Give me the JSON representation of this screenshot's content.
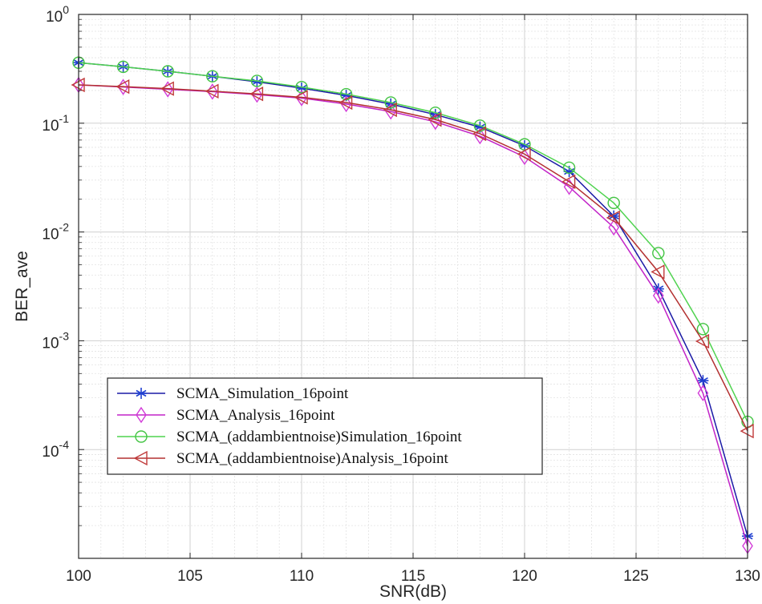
{
  "chart_data": {
    "type": "line",
    "title": "",
    "xlabel": "SNR(dB)",
    "ylabel": "BER_ave",
    "yscale": "log",
    "xlim": [
      100,
      130
    ],
    "ylim": [
      1e-05,
      1
    ],
    "grid": true,
    "minor_grid": true,
    "legend_position": "lower-left",
    "x_ticks": [
      100,
      105,
      110,
      115,
      120,
      125,
      130
    ],
    "x_tick_labels": [
      "100",
      "105",
      "110",
      "115",
      "120",
      "125",
      "130"
    ],
    "y_ticks": [
      1,
      0.1,
      0.01,
      0.001,
      0.0001
    ],
    "y_tick_labels": [
      {
        "base": "10",
        "exp": "0"
      },
      {
        "base": "10",
        "exp": "-1"
      },
      {
        "base": "10",
        "exp": "-2"
      },
      {
        "base": "10",
        "exp": "-3"
      },
      {
        "base": "10",
        "exp": "-4"
      }
    ],
    "series": [
      {
        "name": "SCMA_Simulation_16point",
        "legend_label": "SCMA_Simulation_16point",
        "color": "#1a1aa6",
        "marker_color": "#1f3fd0",
        "marker": "asterisk",
        "x": [
          100,
          102,
          104,
          106,
          108,
          110,
          112,
          114,
          116,
          118,
          120,
          122,
          124,
          126,
          128,
          130
        ],
        "y": [
          0.36,
          0.33,
          0.3,
          0.27,
          0.24,
          0.21,
          0.18,
          0.15,
          0.12,
          0.092,
          0.062,
          0.036,
          0.014,
          0.003,
          0.00043,
          1.6e-05
        ]
      },
      {
        "name": "SCMA_Analysis_16point",
        "legend_label": "SCMA_Analysis_16point",
        "color": "#c224c8",
        "marker_color": "#d23ad8",
        "marker": "diamond",
        "x": [
          100,
          102,
          104,
          106,
          108,
          110,
          112,
          114,
          116,
          118,
          120,
          122,
          124,
          126,
          128,
          130
        ],
        "y": [
          0.225,
          0.215,
          0.205,
          0.195,
          0.183,
          0.17,
          0.15,
          0.128,
          0.103,
          0.076,
          0.049,
          0.026,
          0.011,
          0.0026,
          0.00033,
          1.3e-05
        ]
      },
      {
        "name": "SCMA_(addambientnoise)Simulation_16point",
        "legend_label": "SCMA_(addambientnoise)Simulation_16point",
        "color": "#4fd34f",
        "marker_color": "#43c443",
        "marker": "circle",
        "x": [
          100,
          102,
          104,
          106,
          108,
          110,
          112,
          114,
          116,
          118,
          120,
          122,
          124,
          126,
          128,
          130
        ],
        "y": [
          0.36,
          0.33,
          0.3,
          0.27,
          0.245,
          0.215,
          0.185,
          0.155,
          0.125,
          0.095,
          0.064,
          0.039,
          0.0185,
          0.0064,
          0.00128,
          0.00018
        ]
      },
      {
        "name": "SCMA_(addambientnoise)Analysis_16point",
        "legend_label": "SCMA_(addambientnoise)Analysis_16point",
        "color": "#b33030",
        "marker_color": "#c03a3a",
        "marker": "triangle-left",
        "x": [
          100,
          102,
          104,
          106,
          108,
          110,
          112,
          114,
          116,
          118,
          120,
          122,
          124,
          126,
          128,
          130
        ],
        "y": [
          0.225,
          0.217,
          0.208,
          0.197,
          0.186,
          0.173,
          0.155,
          0.133,
          0.108,
          0.08,
          0.052,
          0.029,
          0.0135,
          0.0043,
          0.00099,
          0.000148
        ]
      }
    ]
  }
}
